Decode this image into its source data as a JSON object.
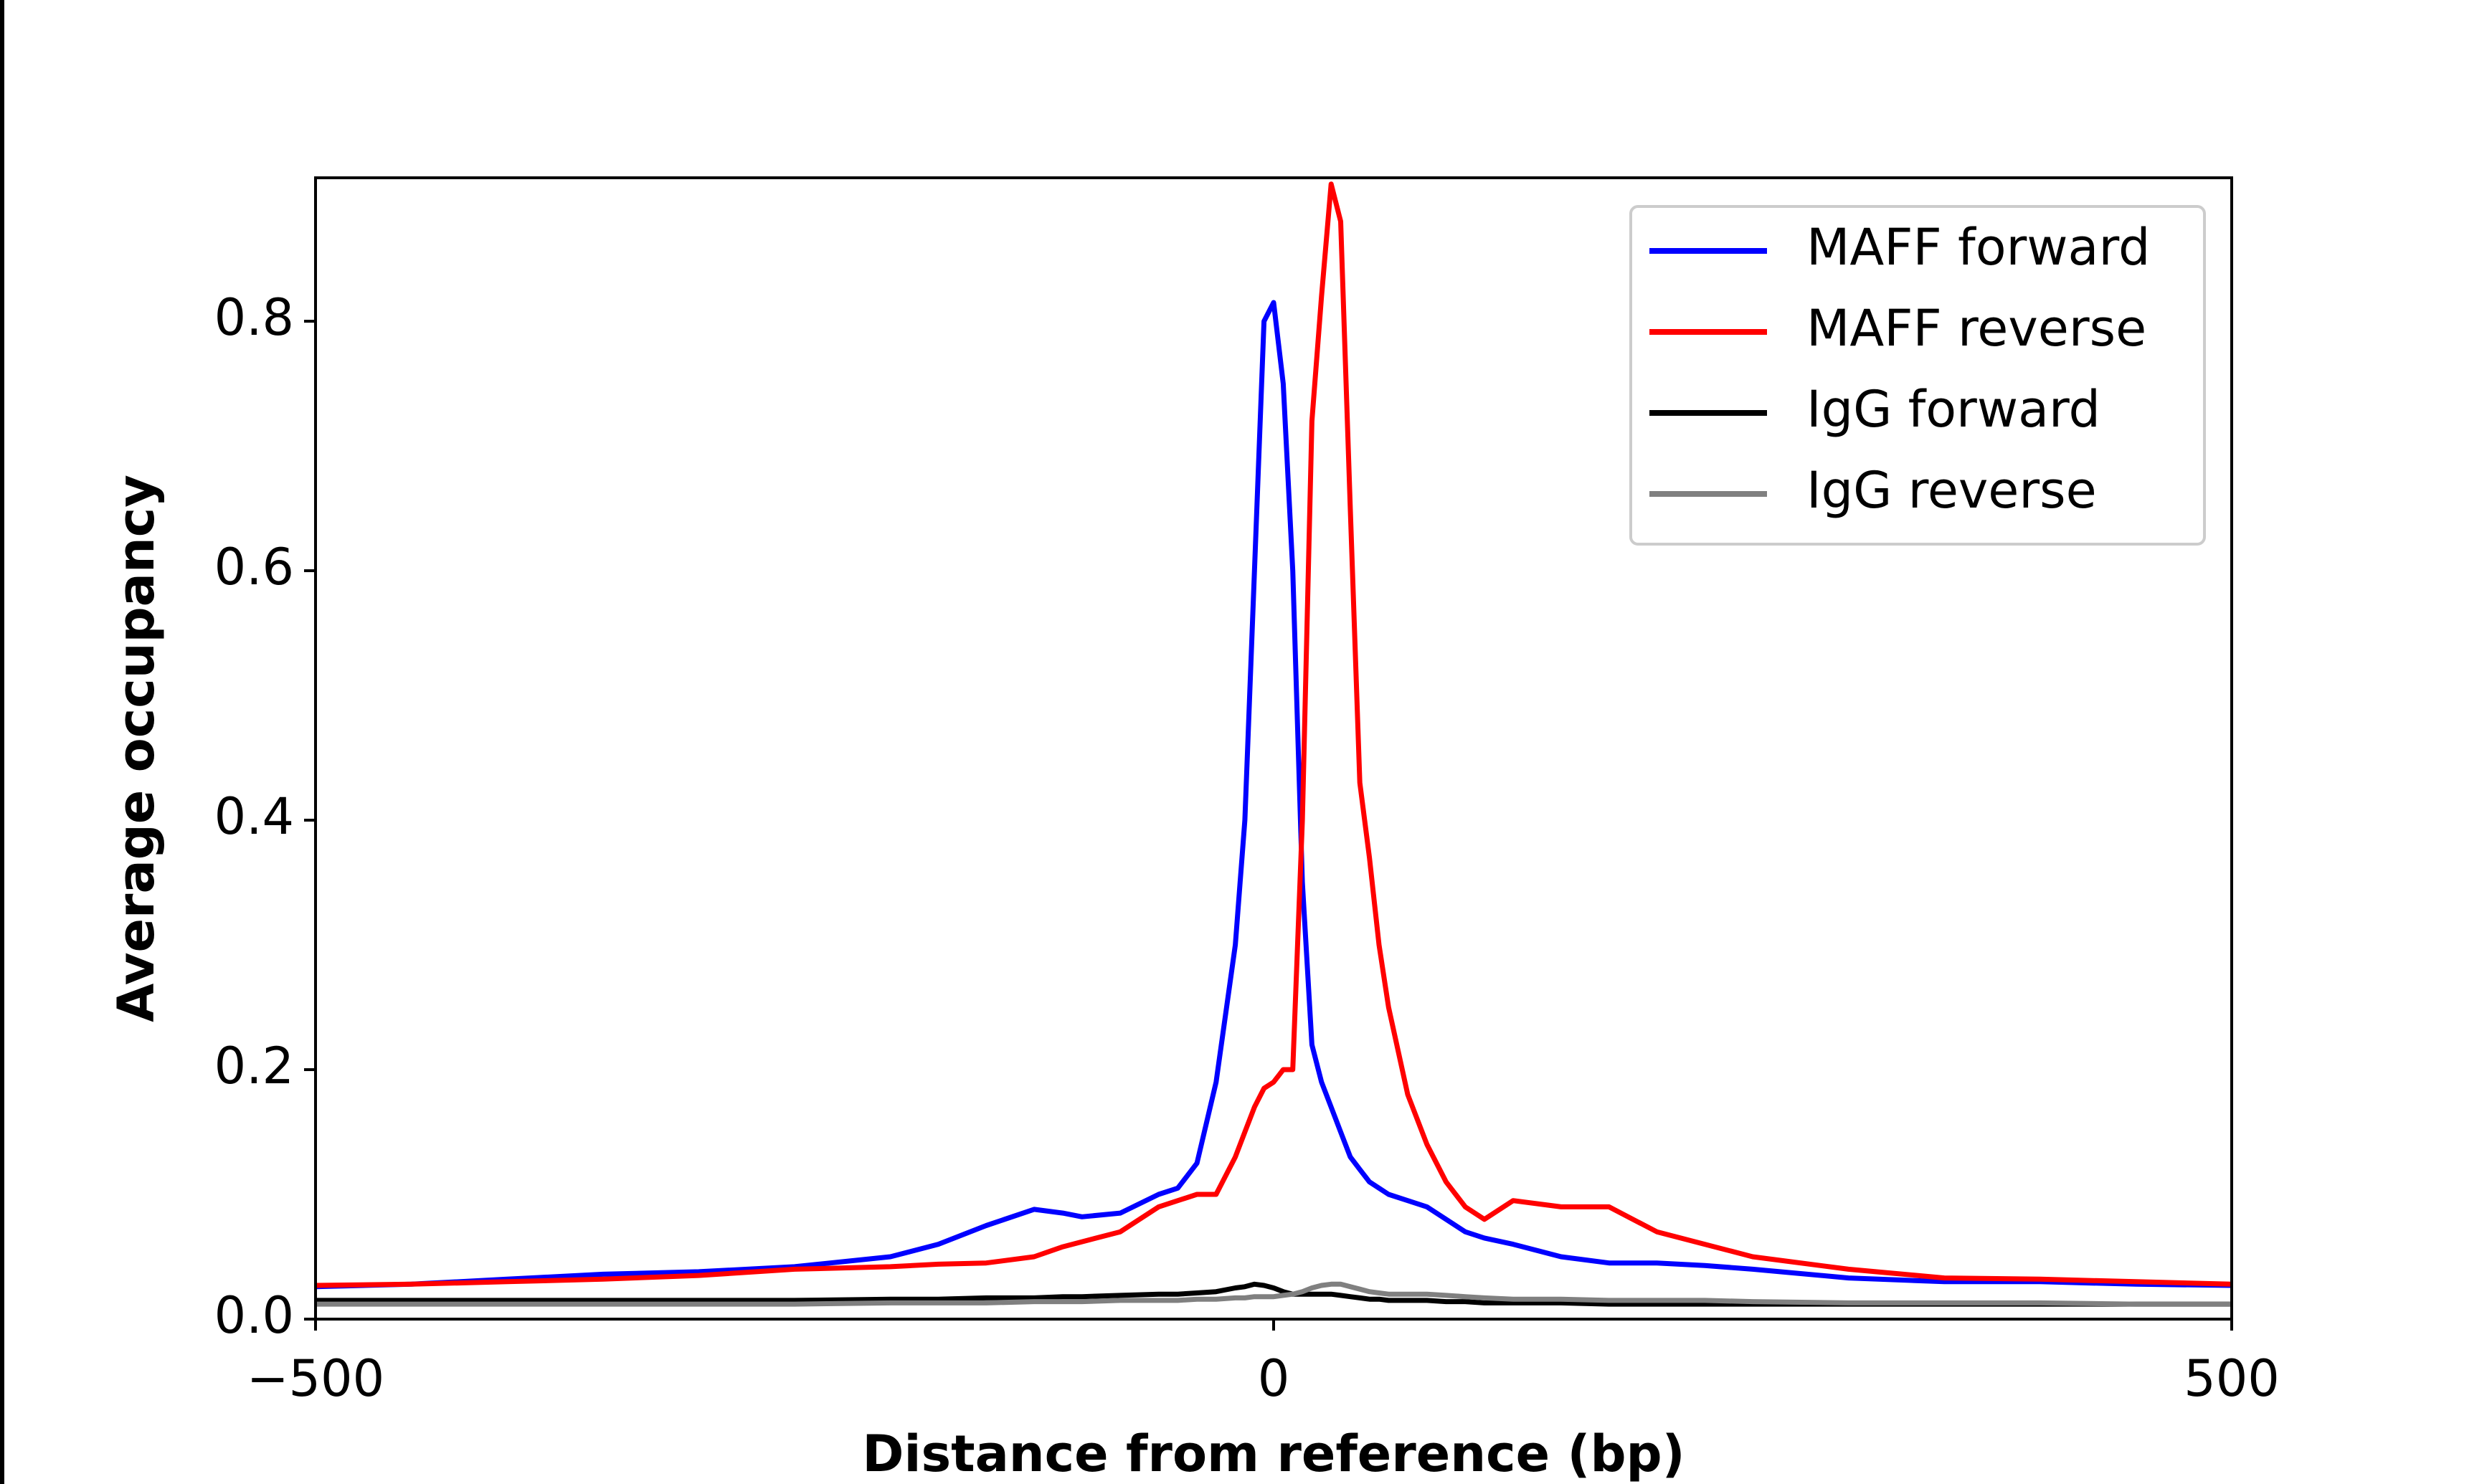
{
  "chart_data": {
    "type": "line",
    "xlabel": "Distance from reference (bp)",
    "ylabel": "Average occupancy",
    "xlim": [
      -500,
      500
    ],
    "xticks": [
      {
        "value": -500,
        "label": "−500"
      },
      0,
      500
    ],
    "ylim": [
      0,
      0.915
    ],
    "yticks": [
      {
        "value": 0,
        "label": "0.0"
      },
      0.2,
      0.4,
      0.6,
      0.8
    ],
    "legend": "upper right",
    "x": [
      -500,
      -450,
      -400,
      -350,
      -300,
      -250,
      -200,
      -175,
      -150,
      -125,
      -110,
      -100,
      -80,
      -60,
      -50,
      -40,
      -30,
      -20,
      -15,
      -10,
      -5,
      0,
      5,
      10,
      15,
      20,
      25,
      30,
      35,
      40,
      45,
      50,
      55,
      60,
      70,
      80,
      90,
      100,
      110,
      125,
      150,
      175,
      200,
      225,
      250,
      300,
      350,
      400,
      450,
      500
    ],
    "series": [
      {
        "name": "MAFF forward",
        "color": "#0000ff",
        "values": [
          0.026,
          0.028,
          0.032,
          0.036,
          0.038,
          0.042,
          0.05,
          0.06,
          0.075,
          0.088,
          0.085,
          0.082,
          0.085,
          0.1,
          0.105,
          0.125,
          0.19,
          0.3,
          0.4,
          0.6,
          0.8,
          0.815,
          0.75,
          0.6,
          0.35,
          0.22,
          0.19,
          0.17,
          0.15,
          0.13,
          0.12,
          0.11,
          0.105,
          0.1,
          0.095,
          0.09,
          0.08,
          0.07,
          0.065,
          0.06,
          0.05,
          0.045,
          0.045,
          0.043,
          0.04,
          0.033,
          0.03,
          0.03,
          0.028,
          0.027
        ]
      },
      {
        "name": "MAFF reverse",
        "color": "#ff0000",
        "values": [
          0.027,
          0.028,
          0.03,
          0.032,
          0.035,
          0.04,
          0.042,
          0.044,
          0.045,
          0.05,
          0.058,
          0.062,
          0.07,
          0.09,
          0.095,
          0.1,
          0.1,
          0.13,
          0.15,
          0.17,
          0.185,
          0.19,
          0.2,
          0.2,
          0.4,
          0.72,
          0.82,
          0.91,
          0.88,
          0.65,
          0.43,
          0.37,
          0.3,
          0.25,
          0.18,
          0.14,
          0.11,
          0.09,
          0.08,
          0.095,
          0.09,
          0.09,
          0.07,
          0.06,
          0.05,
          0.04,
          0.033,
          0.032,
          0.03,
          0.028
        ]
      },
      {
        "name": "IgG forward",
        "color": "#000000",
        "values": [
          0.015,
          0.015,
          0.015,
          0.015,
          0.015,
          0.015,
          0.016,
          0.016,
          0.017,
          0.017,
          0.018,
          0.018,
          0.019,
          0.02,
          0.02,
          0.021,
          0.022,
          0.025,
          0.026,
          0.028,
          0.027,
          0.025,
          0.022,
          0.02,
          0.02,
          0.02,
          0.02,
          0.02,
          0.019,
          0.018,
          0.017,
          0.016,
          0.016,
          0.015,
          0.015,
          0.015,
          0.014,
          0.014,
          0.013,
          0.013,
          0.013,
          0.012,
          0.012,
          0.012,
          0.012,
          0.012,
          0.012,
          0.012,
          0.012,
          0.012
        ]
      },
      {
        "name": "IgG reverse",
        "color": "#808080",
        "values": [
          0.012,
          0.012,
          0.012,
          0.012,
          0.012,
          0.012,
          0.013,
          0.013,
          0.013,
          0.014,
          0.014,
          0.014,
          0.015,
          0.015,
          0.015,
          0.016,
          0.016,
          0.017,
          0.017,
          0.018,
          0.018,
          0.018,
          0.019,
          0.02,
          0.022,
          0.025,
          0.027,
          0.028,
          0.028,
          0.026,
          0.024,
          0.022,
          0.021,
          0.02,
          0.02,
          0.02,
          0.019,
          0.018,
          0.017,
          0.016,
          0.016,
          0.015,
          0.015,
          0.015,
          0.014,
          0.013,
          0.013,
          0.013,
          0.012,
          0.012
        ]
      }
    ]
  }
}
